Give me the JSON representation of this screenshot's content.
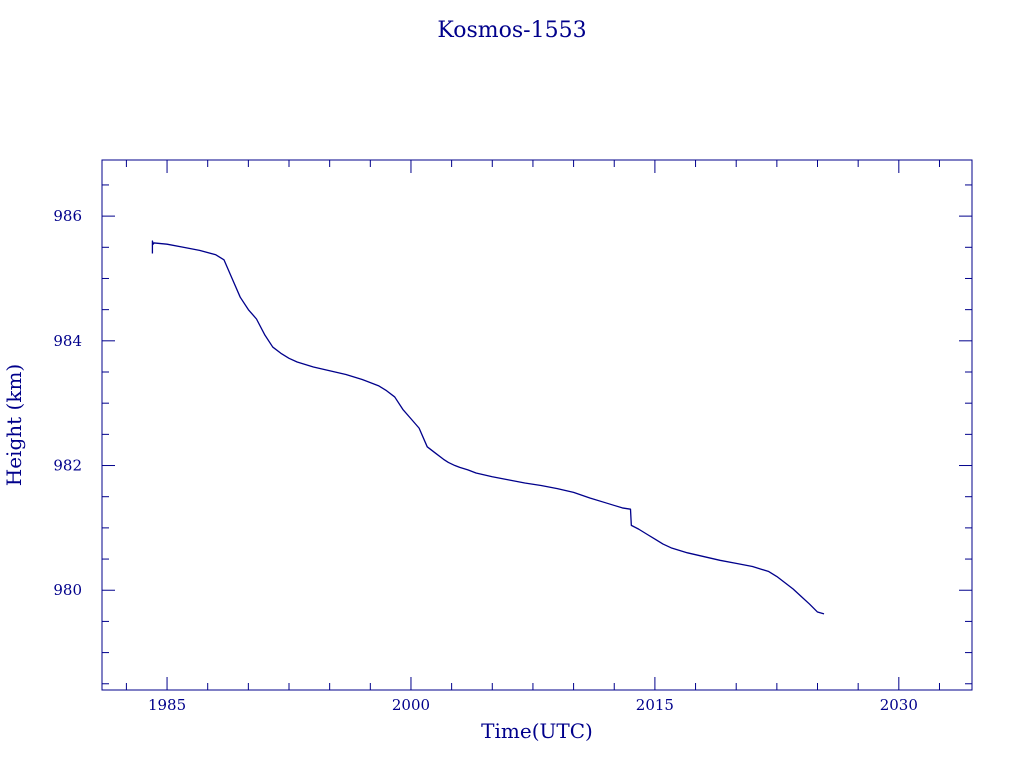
{
  "chart_data": {
    "type": "line",
    "title": "Kosmos-1553",
    "xlabel": "Time(UTC)",
    "ylabel": "Height (km)",
    "xlim": [
      1981,
      2034.5
    ],
    "ylim": [
      978.4,
      986.9
    ],
    "x_major_ticks": [
      1985,
      2000,
      2015,
      2030
    ],
    "x_minor_step": 2.5,
    "y_major_ticks": [
      980,
      982,
      984,
      986
    ],
    "y_minor_step": 0.5,
    "grid": false,
    "legend": "none",
    "color": "#00008b",
    "series": [
      {
        "x": [
          1984.1,
          1984.1,
          1984.15,
          1984.2,
          1985.0,
          1986.0,
          1987.0,
          1988.0,
          1988.5,
          1989.0,
          1989.5,
          1990.0,
          1990.5,
          1991.0,
          1991.5,
          1992.0,
          1992.5,
          1993.0,
          1994.0,
          1995.0,
          1996.0,
          1997.0,
          1998.0,
          1998.5,
          1999.0,
          1999.5,
          2000.0,
          2000.5,
          2001.0,
          2001.5,
          2002.0,
          2002.3,
          2002.7,
          2003.0,
          2003.5,
          2004.0,
          2005.0,
          2006.0,
          2007.0,
          2008.0,
          2009.0,
          2010.0,
          2011.0,
          2012.0,
          2012.5,
          2013.0,
          2013.5,
          2013.55,
          2014.0,
          2014.5,
          2015.0,
          2015.5,
          2016.0,
          2017.0,
          2018.0,
          2019.0,
          2020.0,
          2021.0,
          2022.0,
          2022.5,
          2023.0,
          2023.5,
          2024.0,
          2024.5,
          2025.0,
          2025.4
        ],
        "y": [
          985.4,
          985.6,
          985.55,
          985.57,
          985.55,
          985.5,
          985.45,
          985.38,
          985.3,
          985.0,
          984.7,
          984.5,
          984.35,
          984.1,
          983.9,
          983.8,
          983.72,
          983.66,
          983.58,
          983.52,
          983.46,
          983.38,
          983.28,
          983.2,
          983.1,
          982.9,
          982.75,
          982.6,
          982.3,
          982.2,
          982.1,
          982.05,
          982.0,
          981.97,
          981.93,
          981.88,
          981.82,
          981.77,
          981.72,
          981.68,
          981.63,
          981.57,
          981.48,
          981.4,
          981.36,
          981.32,
          981.3,
          981.04,
          980.98,
          980.9,
          980.82,
          980.74,
          980.68,
          980.6,
          980.54,
          980.48,
          980.43,
          980.38,
          980.3,
          980.22,
          980.12,
          980.02,
          979.9,
          979.78,
          979.65,
          979.62
        ]
      }
    ]
  }
}
